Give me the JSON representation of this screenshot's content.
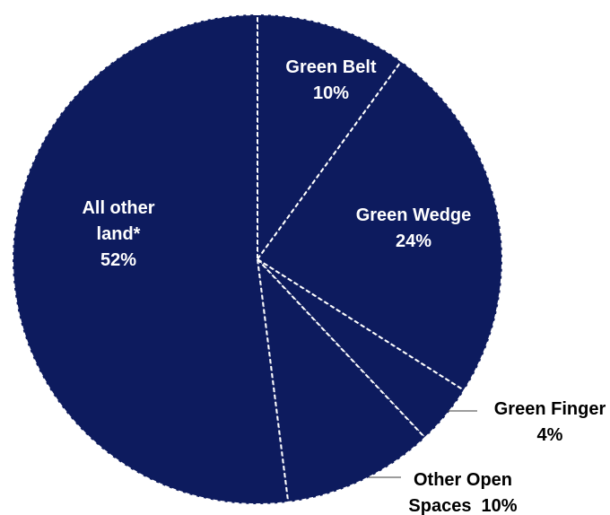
{
  "chart_data": {
    "type": "pie",
    "start_angle_deg": 0,
    "direction": "clockwise",
    "slice_color": "#0d1b5e",
    "separator_color": "#ffffff",
    "inside_label_color": "#ffffff",
    "outside_label_color": "#000000",
    "leader_color": "#3a3a3a",
    "slices": [
      {
        "key": "green-belt",
        "label": [
          "Green Belt",
          "10%"
        ],
        "value": 10,
        "label_position": "inside"
      },
      {
        "key": "green-wedge",
        "label": [
          "Green Wedge",
          "24%"
        ],
        "value": 24,
        "label_position": "inside"
      },
      {
        "key": "green-finger",
        "label": [
          "Green Finger",
          "4%"
        ],
        "value": 4,
        "label_position": "outside"
      },
      {
        "key": "other-open",
        "label": [
          "Other Open",
          "Spaces  10%"
        ],
        "value": 10,
        "label_position": "outside"
      },
      {
        "key": "all-other",
        "label": [
          "All other",
          "land*",
          "52%"
        ],
        "value": 52,
        "label_position": "inside"
      }
    ]
  }
}
